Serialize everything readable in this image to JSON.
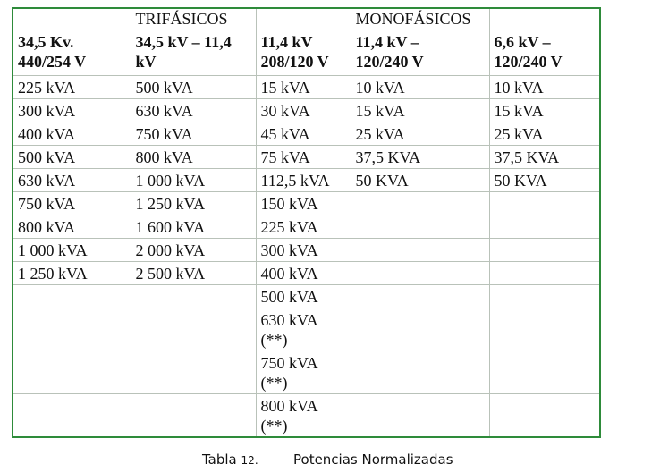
{
  "table": {
    "group_headers": [
      "",
      "TRIFÁSICOS",
      "",
      "MONOFÁSICOS",
      ""
    ],
    "column_headers": [
      [
        "34,5 Kv.",
        "440/254 V"
      ],
      [
        "34,5 kV – 11,4",
        "kV"
      ],
      [
        "11,4 kV",
        "208/120 V"
      ],
      [
        "11,4 kV –",
        "120/240 V"
      ],
      [
        "6,6 kV –",
        "120/240 V"
      ]
    ],
    "rows": [
      [
        [
          "225 kVA"
        ],
        [
          "500 kVA"
        ],
        [
          "15 kVA"
        ],
        [
          "10 kVA"
        ],
        [
          "10 kVA"
        ]
      ],
      [
        [
          "300 kVA"
        ],
        [
          "630 kVA"
        ],
        [
          "30 kVA"
        ],
        [
          "15 kVA"
        ],
        [
          "15 kVA"
        ]
      ],
      [
        [
          "400 kVA"
        ],
        [
          "750 kVA"
        ],
        [
          "45 kVA"
        ],
        [
          "25 kVA"
        ],
        [
          "25 kVA"
        ]
      ],
      [
        [
          "500 kVA"
        ],
        [
          "800 kVA"
        ],
        [
          "75 kVA"
        ],
        [
          "37,5 KVA"
        ],
        [
          "37,5 KVA"
        ]
      ],
      [
        [
          "630 kVA"
        ],
        [
          "1 000 kVA"
        ],
        [
          "112,5 kVA"
        ],
        [
          "50 KVA"
        ],
        [
          "50 KVA"
        ]
      ],
      [
        [
          "750 kVA"
        ],
        [
          "1 250 kVA"
        ],
        [
          "150 kVA"
        ],
        [
          ""
        ],
        [
          ""
        ]
      ],
      [
        [
          "800 kVA"
        ],
        [
          "1 600 kVA"
        ],
        [
          "225 kVA"
        ],
        [
          ""
        ],
        [
          ""
        ]
      ],
      [
        [
          "1 000 kVA"
        ],
        [
          "2 000 kVA"
        ],
        [
          "300 kVA"
        ],
        [
          ""
        ],
        [
          ""
        ]
      ],
      [
        [
          "1 250 kVA"
        ],
        [
          "2 500 kVA"
        ],
        [
          "400 kVA"
        ],
        [
          ""
        ],
        [
          ""
        ]
      ],
      [
        [
          ""
        ],
        [
          ""
        ],
        [
          "500 kVA"
        ],
        [
          ""
        ],
        [
          ""
        ]
      ],
      [
        [
          ""
        ],
        [
          ""
        ],
        [
          "630 kVA",
          "(**)"
        ],
        [
          ""
        ],
        [
          ""
        ]
      ],
      [
        [
          ""
        ],
        [
          ""
        ],
        [
          "750 kVA",
          "(**)"
        ],
        [
          ""
        ],
        [
          ""
        ]
      ],
      [
        [
          ""
        ],
        [
          ""
        ],
        [
          "800 kVA",
          "(**)"
        ],
        [
          ""
        ],
        [
          ""
        ]
      ]
    ]
  },
  "caption": {
    "label": "Tabla",
    "number": "12.",
    "title": "Potencias Normalizadas"
  }
}
